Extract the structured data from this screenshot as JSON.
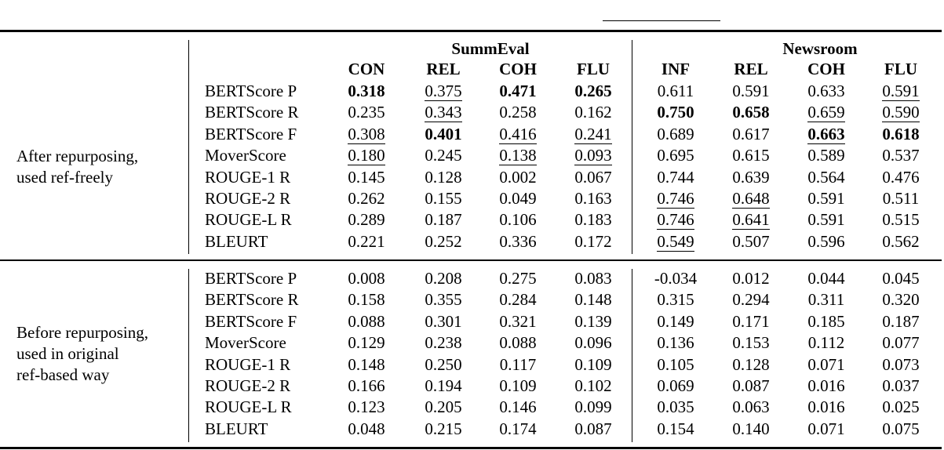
{
  "groups": {
    "summeval": "SummEval",
    "newsroom": "Newsroom"
  },
  "columns": [
    "CON",
    "REL",
    "COH",
    "FLU",
    "INF",
    "REL",
    "COH",
    "FLU"
  ],
  "sections": [
    {
      "label_lines": [
        "After repurposing,",
        "used ref-freely"
      ],
      "rows": [
        {
          "metric": "BERTScore P",
          "values": [
            "0.318",
            "0.375",
            "0.471",
            "0.265",
            "0.611",
            "0.591",
            "0.633",
            "0.591"
          ],
          "bold": [
            0,
            2,
            3
          ],
          "underline": [
            1,
            7
          ]
        },
        {
          "metric": "BERTScore R",
          "values": [
            "0.235",
            "0.343",
            "0.258",
            "0.162",
            "0.750",
            "0.658",
            "0.659",
            "0.590"
          ],
          "bold": [
            4,
            5
          ],
          "underline": [
            1,
            6,
            7
          ]
        },
        {
          "metric": "BERTScore F",
          "values": [
            "0.308",
            "0.401",
            "0.416",
            "0.241",
            "0.689",
            "0.617",
            "0.663",
            "0.618"
          ],
          "bold": [
            1,
            6,
            7
          ],
          "underline": [
            0,
            2,
            3,
            6
          ]
        },
        {
          "metric": "MoverScore",
          "values": [
            "0.180",
            "0.245",
            "0.138",
            "0.093",
            "0.695",
            "0.615",
            "0.589",
            "0.537"
          ],
          "bold": [],
          "underline": [
            0,
            2,
            3
          ]
        },
        {
          "metric": "ROUGE-1 R",
          "values": [
            "0.145",
            "0.128",
            "0.002",
            "0.067",
            "0.744",
            "0.639",
            "0.564",
            "0.476"
          ],
          "bold": [],
          "underline": []
        },
        {
          "metric": "ROUGE-2 R",
          "values": [
            "0.262",
            "0.155",
            "0.049",
            "0.163",
            "0.746",
            "0.648",
            "0.591",
            "0.511"
          ],
          "bold": [],
          "underline": [
            4,
            5
          ]
        },
        {
          "metric": "ROUGE-L R",
          "values": [
            "0.289",
            "0.187",
            "0.106",
            "0.183",
            "0.746",
            "0.641",
            "0.591",
            "0.515"
          ],
          "bold": [],
          "underline": [
            4,
            5
          ]
        },
        {
          "metric": "BLEURT",
          "values": [
            "0.221",
            "0.252",
            "0.336",
            "0.172",
            "0.549",
            "0.507",
            "0.596",
            "0.562"
          ],
          "bold": [],
          "underline": [
            4
          ]
        }
      ]
    },
    {
      "label_lines": [
        "Before repurposing,",
        "used in original",
        "ref-based way"
      ],
      "rows": [
        {
          "metric": "BERTScore P",
          "values": [
            "0.008",
            "0.208",
            "0.275",
            "0.083",
            "-0.034",
            "0.012",
            "0.044",
            "0.045"
          ],
          "bold": [],
          "underline": []
        },
        {
          "metric": "BERTScore R",
          "values": [
            "0.158",
            "0.355",
            "0.284",
            "0.148",
            "0.315",
            "0.294",
            "0.311",
            "0.320"
          ],
          "bold": [],
          "underline": []
        },
        {
          "metric": "BERTScore F",
          "values": [
            "0.088",
            "0.301",
            "0.321",
            "0.139",
            "0.149",
            "0.171",
            "0.185",
            "0.187"
          ],
          "bold": [],
          "underline": []
        },
        {
          "metric": "MoverScore",
          "values": [
            "0.129",
            "0.238",
            "0.088",
            "0.096",
            "0.136",
            "0.153",
            "0.112",
            "0.077"
          ],
          "bold": [],
          "underline": []
        },
        {
          "metric": "ROUGE-1 R",
          "values": [
            "0.148",
            "0.250",
            "0.117",
            "0.109",
            "0.105",
            "0.128",
            "0.071",
            "0.073"
          ],
          "bold": [],
          "underline": []
        },
        {
          "metric": "ROUGE-2 R",
          "values": [
            "0.166",
            "0.194",
            "0.109",
            "0.102",
            "0.069",
            "0.087",
            "0.016",
            "0.037"
          ],
          "bold": [],
          "underline": []
        },
        {
          "metric": "ROUGE-L R",
          "values": [
            "0.123",
            "0.205",
            "0.146",
            "0.099",
            "0.035",
            "0.063",
            "0.016",
            "0.025"
          ],
          "bold": [],
          "underline": []
        },
        {
          "metric": "BLEURT",
          "values": [
            "0.048",
            "0.215",
            "0.174",
            "0.087",
            "0.154",
            "0.140",
            "0.071",
            "0.075"
          ],
          "bold": [],
          "underline": []
        }
      ]
    }
  ]
}
